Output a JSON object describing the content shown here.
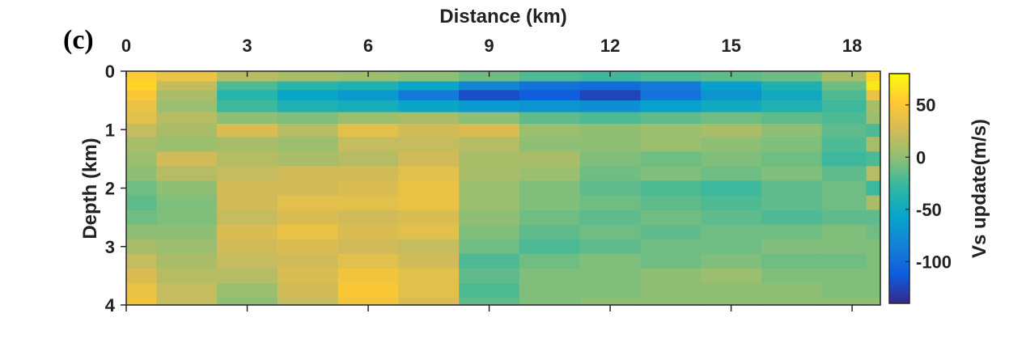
{
  "panel_label": "(c)",
  "chart_data": {
    "type": "heatmap",
    "title": "",
    "xlabel": "Distance (km)",
    "ylabel": "Depth (km)",
    "colorbar_label": "Vs update(m/s)",
    "x_axis_position": "top",
    "xlim": [
      0,
      18.7
    ],
    "ylim": [
      0,
      4
    ],
    "y_reversed": true,
    "x_ticks": [
      0,
      3,
      6,
      9,
      12,
      15,
      18
    ],
    "x_tick_labels": [
      "0",
      "3",
      "6",
      "9",
      "12",
      "15",
      "18"
    ],
    "y_ticks": [
      0,
      1,
      2,
      3,
      4
    ],
    "y_tick_labels": [
      "0",
      "1",
      "2",
      "3",
      "4"
    ],
    "clim": [
      -140,
      80
    ],
    "colorbar_ticks": [
      50,
      0,
      -50,
      -100
    ],
    "colorbar_tick_labels": [
      "50",
      "0",
      "-50",
      "-100"
    ],
    "colormap": "parula",
    "colormap_stops": [
      "#352a87",
      "#0f5cdd",
      "#1481d6",
      "#06a4ca",
      "#2eb7a4",
      "#87bf77",
      "#d1bb59",
      "#fec832",
      "#f9fb0e"
    ],
    "x": [
      0,
      1.5,
      3,
      4.5,
      6,
      7.5,
      9,
      10.5,
      12,
      13.5,
      15,
      16.5,
      18,
      18.7
    ],
    "y": [
      0.1,
      0.25,
      0.4,
      0.6,
      0.8,
      1.0,
      1.25,
      1.5,
      1.75,
      2.0,
      2.25,
      2.5,
      2.75,
      3.0,
      3.25,
      3.5,
      3.75,
      4.0
    ],
    "z": [
      [
        55,
        40,
        15,
        10,
        5,
        0,
        -10,
        -20,
        -25,
        -20,
        -15,
        -10,
        10,
        60
      ],
      [
        60,
        20,
        -20,
        -35,
        -40,
        -55,
        -80,
        -95,
        -100,
        -90,
        -60,
        -40,
        -10,
        70
      ],
      [
        50,
        10,
        -35,
        -55,
        -65,
        -90,
        -120,
        -110,
        -125,
        -95,
        -70,
        -50,
        -20,
        40
      ],
      [
        40,
        5,
        -25,
        -40,
        -45,
        -55,
        -65,
        -70,
        -75,
        -60,
        -50,
        -40,
        -25,
        10
      ],
      [
        35,
        15,
        0,
        -5,
        5,
        10,
        0,
        -15,
        -20,
        -15,
        -10,
        -15,
        -20,
        5
      ],
      [
        20,
        10,
        30,
        15,
        35,
        25,
        30,
        5,
        0,
        5,
        10,
        0,
        -15,
        -20
      ],
      [
        10,
        5,
        10,
        5,
        20,
        20,
        15,
        0,
        0,
        5,
        0,
        -5,
        -20,
        10
      ],
      [
        5,
        25,
        15,
        10,
        15,
        25,
        10,
        10,
        -5,
        -10,
        -5,
        -10,
        -25,
        -20
      ],
      [
        0,
        15,
        20,
        25,
        25,
        35,
        10,
        5,
        -10,
        -5,
        -10,
        -5,
        -15,
        15
      ],
      [
        -10,
        0,
        25,
        25,
        30,
        40,
        5,
        -5,
        -15,
        -20,
        -25,
        -15,
        -10,
        -25
      ],
      [
        -15,
        -5,
        25,
        35,
        35,
        40,
        5,
        -5,
        -10,
        -15,
        -20,
        -15,
        -10,
        10
      ],
      [
        -10,
        -5,
        20,
        30,
        25,
        30,
        0,
        -10,
        -15,
        -10,
        -15,
        -20,
        -15,
        -15
      ],
      [
        0,
        0,
        30,
        40,
        30,
        35,
        -5,
        -15,
        -10,
        -15,
        -10,
        -10,
        -5,
        -10
      ],
      [
        10,
        5,
        25,
        30,
        25,
        20,
        -10,
        -20,
        -15,
        -10,
        -10,
        -5,
        -5,
        -5
      ],
      [
        20,
        10,
        20,
        25,
        35,
        25,
        -20,
        -10,
        -5,
        -10,
        -5,
        -10,
        -10,
        -5
      ],
      [
        30,
        15,
        15,
        30,
        45,
        35,
        -15,
        -5,
        -5,
        0,
        5,
        -5,
        -5,
        -5
      ],
      [
        40,
        20,
        5,
        25,
        50,
        35,
        -20,
        -5,
        -5,
        0,
        0,
        0,
        -5,
        -5
      ],
      [
        45,
        20,
        0,
        20,
        45,
        30,
        -15,
        -5,
        0,
        0,
        0,
        0,
        0,
        0
      ]
    ]
  }
}
